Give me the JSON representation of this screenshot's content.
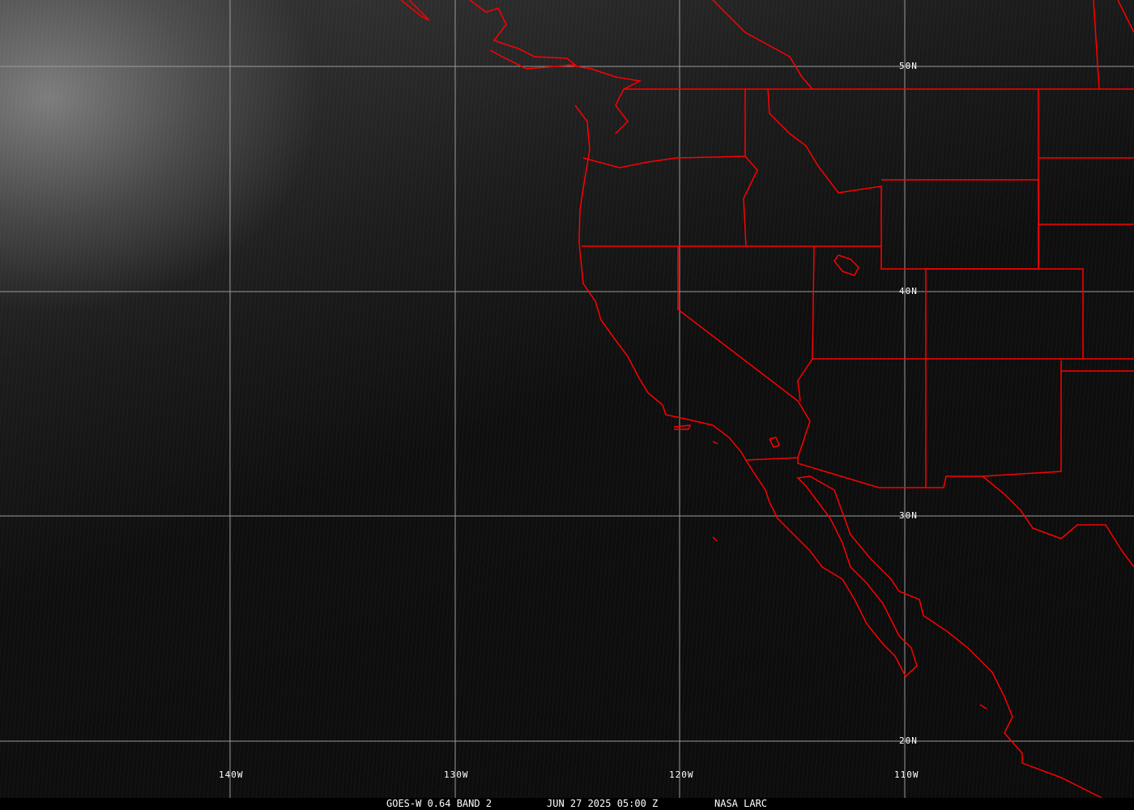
{
  "map": {
    "boundary_color": "#ff0000",
    "grid_color": "#9a9a9a",
    "lat_labels": [
      "50N",
      "40N",
      "30N",
      "20N"
    ],
    "lon_labels": [
      "140W",
      "130W",
      "120W",
      "110W"
    ]
  },
  "caption": {
    "product": "GOES-W 0.64 BAND 2",
    "datetime": "JUN 27 2025 05:00 Z",
    "source": "NASA LARC"
  }
}
